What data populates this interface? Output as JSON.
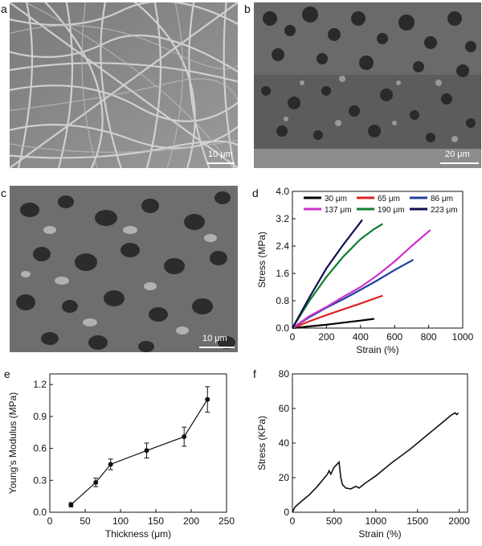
{
  "panels": {
    "a": {
      "letter": "a",
      "scale": "10 μm"
    },
    "b": {
      "letter": "b",
      "scale": "20 μm"
    },
    "c": {
      "letter": "c",
      "scale": "10 μm"
    },
    "d": {
      "letter": "d"
    },
    "e": {
      "letter": "e"
    },
    "f": {
      "letter": "f"
    }
  },
  "chart_data": [
    {
      "id": "d",
      "type": "line",
      "xlabel": "Strain (%)",
      "ylabel": "Stress (MPa)",
      "xlim": [
        0,
        1000
      ],
      "ylim": [
        0,
        4.0
      ],
      "xticks": [
        "0",
        "200",
        "400",
        "600",
        "800",
        "1000"
      ],
      "yticks": [
        "0.0",
        "0.8",
        "1.6",
        "2.4",
        "3.2",
        "4.0"
      ],
      "legend_position": "top",
      "series": [
        {
          "name": "30 μm",
          "color": "#000000",
          "points": [
            [
              0,
              0
            ],
            [
              100,
              0.05
            ],
            [
              200,
              0.1
            ],
            [
              300,
              0.16
            ],
            [
              400,
              0.22
            ],
            [
              480,
              0.27
            ]
          ]
        },
        {
          "name": "65 μm",
          "color": "#e02020",
          "points": [
            [
              0,
              0
            ],
            [
              100,
              0.2
            ],
            [
              200,
              0.38
            ],
            [
              300,
              0.55
            ],
            [
              400,
              0.72
            ],
            [
              530,
              0.95
            ]
          ]
        },
        {
          "name": "86 μm",
          "color": "#2040a0",
          "points": [
            [
              0,
              0
            ],
            [
              100,
              0.32
            ],
            [
              200,
              0.6
            ],
            [
              300,
              0.85
            ],
            [
              400,
              1.12
            ],
            [
              500,
              1.4
            ],
            [
              600,
              1.7
            ],
            [
              710,
              2.0
            ]
          ]
        },
        {
          "name": "137 μm",
          "color": "#cc33cc",
          "points": [
            [
              0,
              0
            ],
            [
              100,
              0.35
            ],
            [
              200,
              0.62
            ],
            [
              300,
              0.92
            ],
            [
              400,
              1.2
            ],
            [
              500,
              1.55
            ],
            [
              600,
              1.95
            ],
            [
              700,
              2.4
            ],
            [
              810,
              2.87
            ]
          ]
        },
        {
          "name": "190 μm",
          "color": "#108030",
          "points": [
            [
              0,
              0
            ],
            [
              100,
              0.8
            ],
            [
              200,
              1.5
            ],
            [
              300,
              2.1
            ],
            [
              400,
              2.6
            ],
            [
              480,
              2.9
            ],
            [
              530,
              3.05
            ]
          ]
        },
        {
          "name": "223 μm",
          "color": "#101050",
          "points": [
            [
              0,
              0
            ],
            [
              100,
              0.9
            ],
            [
              200,
              1.75
            ],
            [
              300,
              2.45
            ],
            [
              400,
              3.1
            ],
            [
              410,
              3.17
            ]
          ]
        }
      ]
    },
    {
      "id": "e",
      "type": "line",
      "xlabel": "Thickness (μm)",
      "ylabel": "Young's Modulus (MPa)",
      "xlim": [
        0,
        250
      ],
      "ylim": [
        0,
        1.3
      ],
      "xticks": [
        "0",
        "50",
        "100",
        "150",
        "200",
        "250"
      ],
      "yticks": [
        "0.0",
        "0.3",
        "0.6",
        "0.9",
        "1.2"
      ],
      "x": [
        30,
        65,
        86,
        137,
        190,
        223
      ],
      "y": [
        0.07,
        0.28,
        0.45,
        0.58,
        0.71,
        1.06
      ],
      "err": [
        0.02,
        0.04,
        0.05,
        0.07,
        0.09,
        0.12
      ]
    },
    {
      "id": "f",
      "type": "line",
      "xlabel": "Strain (%)",
      "ylabel": "Stress (KPa)",
      "xlim": [
        0,
        2100
      ],
      "ylim": [
        0,
        80
      ],
      "xticks": [
        "0",
        "500",
        "1000",
        "1500",
        "2000"
      ],
      "yticks": [
        "0",
        "20",
        "40",
        "60",
        "80"
      ],
      "points": [
        [
          0,
          0
        ],
        [
          30,
          3
        ],
        [
          100,
          6
        ],
        [
          200,
          10
        ],
        [
          300,
          15
        ],
        [
          420,
          22
        ],
        [
          440,
          24
        ],
        [
          460,
          22
        ],
        [
          480,
          24
        ],
        [
          500,
          26
        ],
        [
          540,
          28
        ],
        [
          560,
          29
        ],
        [
          580,
          20
        ],
        [
          600,
          16
        ],
        [
          640,
          14
        ],
        [
          700,
          13.5
        ],
        [
          760,
          15
        ],
        [
          800,
          14
        ],
        [
          880,
          17
        ],
        [
          1000,
          21
        ],
        [
          1100,
          25
        ],
        [
          1200,
          29
        ],
        [
          1400,
          36
        ],
        [
          1600,
          44
        ],
        [
          1800,
          52
        ],
        [
          1900,
          56
        ],
        [
          1950,
          57.5
        ],
        [
          1970,
          56.5
        ],
        [
          1990,
          57.5
        ]
      ]
    }
  ]
}
